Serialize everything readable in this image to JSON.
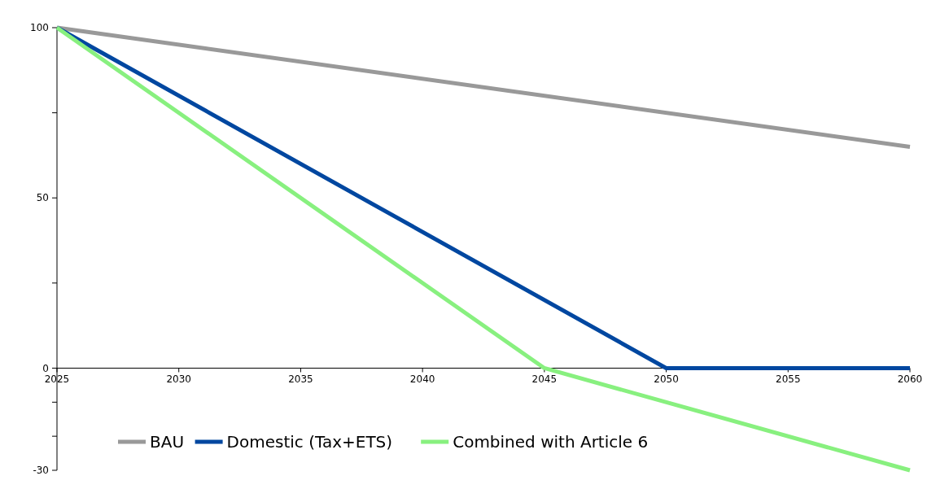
{
  "chart_data": {
    "type": "line",
    "xlim": [
      2025,
      2060
    ],
    "xticks": [
      2025,
      2030,
      2035,
      2040,
      2045,
      2050,
      2055,
      2060
    ],
    "ylim": [
      -30,
      100
    ],
    "yticks": [
      100,
      {
        "value": 75,
        "label": null
      },
      50,
      {
        "value": 25,
        "label": null
      },
      0,
      {
        "value": -10,
        "label": null
      },
      {
        "value": -20,
        "label": null
      },
      -30
    ],
    "grid": false,
    "legend": "bottom left",
    "marker": "none",
    "line_style": "solid",
    "series": [
      {
        "name": "BAU",
        "color": "#999999",
        "x": [
          2025,
          2060
        ],
        "values": [
          100,
          65
        ]
      },
      {
        "name": "Domestic (Tax+ETS)",
        "color": "#0047a0",
        "x": [
          2025,
          2050,
          2060
        ],
        "values": [
          100,
          0,
          0
        ]
      },
      {
        "name": "Combined with Article 6",
        "color": "#88f07f",
        "x": [
          2025,
          2045,
          2060
        ],
        "values": [
          100,
          0,
          -30
        ]
      }
    ]
  }
}
